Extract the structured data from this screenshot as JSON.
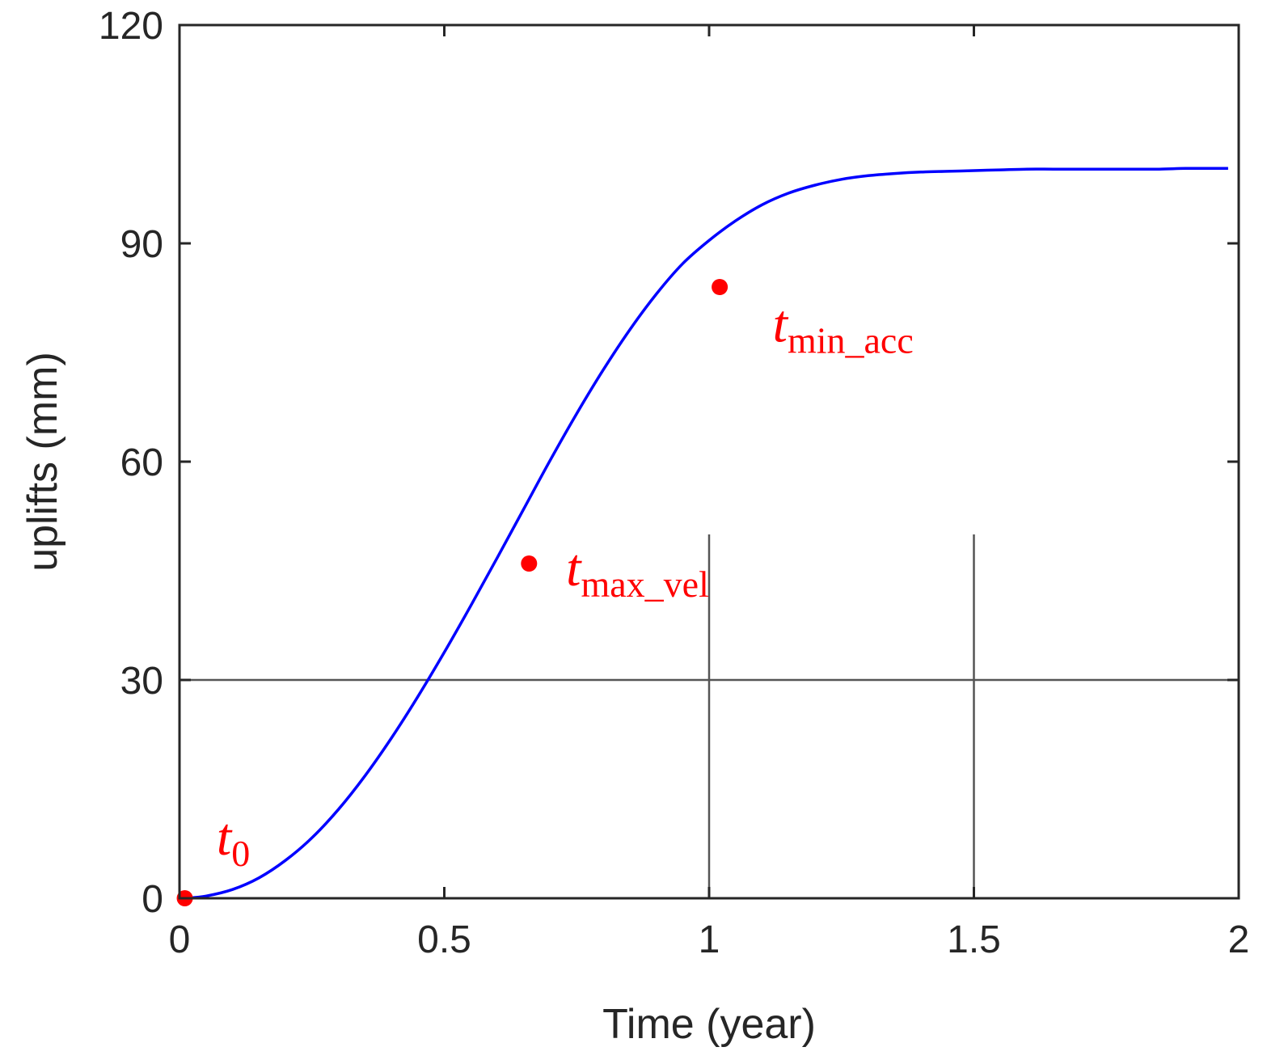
{
  "chart_data": {
    "type": "line",
    "title": "",
    "xlabel": "Time (year)",
    "ylabel": "uplifts (mm)",
    "xlim": [
      0,
      2
    ],
    "ylim": [
      0,
      120
    ],
    "xticks": [
      0,
      0.5,
      1,
      1.5,
      2
    ],
    "xtick_labels": [
      "0",
      "0.5",
      "1",
      "1.5",
      "2"
    ],
    "yticks": [
      0,
      30,
      60,
      90,
      120
    ],
    "ytick_labels": [
      "0",
      "30",
      "60",
      "90",
      "120"
    ],
    "grid": false,
    "series": [
      {
        "color": "#0000ff",
        "x": [
          0.01,
          0.05,
          0.1,
          0.15,
          0.2,
          0.25,
          0.3,
          0.35,
          0.4,
          0.45,
          0.5,
          0.55,
          0.6,
          0.65,
          0.7,
          0.75,
          0.8,
          0.85,
          0.9,
          0.95,
          1.0,
          1.05,
          1.1,
          1.15,
          1.2,
          1.25,
          1.3,
          1.35,
          1.4,
          1.45,
          1.5,
          1.55,
          1.6,
          1.65,
          1.7,
          1.75,
          1.8,
          1.85,
          1.9,
          1.95,
          1.98
        ],
        "values": [
          0.0,
          0.3,
          1.2,
          2.8,
          5.2,
          8.3,
          12.2,
          16.8,
          22.0,
          27.7,
          33.8,
          40.2,
          46.8,
          53.5,
          60.2,
          66.6,
          72.6,
          78.1,
          83.0,
          87.2,
          90.4,
          93.1,
          95.3,
          96.9,
          98.0,
          98.8,
          99.3,
          99.6,
          99.8,
          99.9,
          100.0,
          100.1,
          100.2,
          100.2,
          100.2,
          100.2,
          100.2,
          100.2,
          100.3,
          100.3,
          100.3
        ]
      }
    ],
    "markers": [
      {
        "x": 0.01,
        "y": 0,
        "color": "#ff0000"
      },
      {
        "x": 0.66,
        "y": 46,
        "color": "#ff0000"
      },
      {
        "x": 1.02,
        "y": 84,
        "color": "#ff0000"
      }
    ],
    "annotations": [
      {
        "text": "t",
        "sub": "0",
        "x": 0.07,
        "y": 6,
        "color": "#ff0000"
      },
      {
        "text": "t",
        "sub": "max_vel",
        "x": 0.73,
        "y": 43,
        "color": "#ff0000"
      },
      {
        "text": "t",
        "sub": "min_acc",
        "x": 1.12,
        "y": 76.5,
        "color": "#ff0000"
      }
    ],
    "reference_lines": [
      {
        "orientation": "horizontal",
        "at": 30,
        "from": 0,
        "to": 2,
        "color": "#555555"
      },
      {
        "orientation": "vertical",
        "at": 1,
        "from": 0,
        "to": 50,
        "color": "#555555"
      },
      {
        "orientation": "vertical",
        "at": 1.5,
        "from": 0,
        "to": 50,
        "color": "#555555"
      }
    ]
  }
}
